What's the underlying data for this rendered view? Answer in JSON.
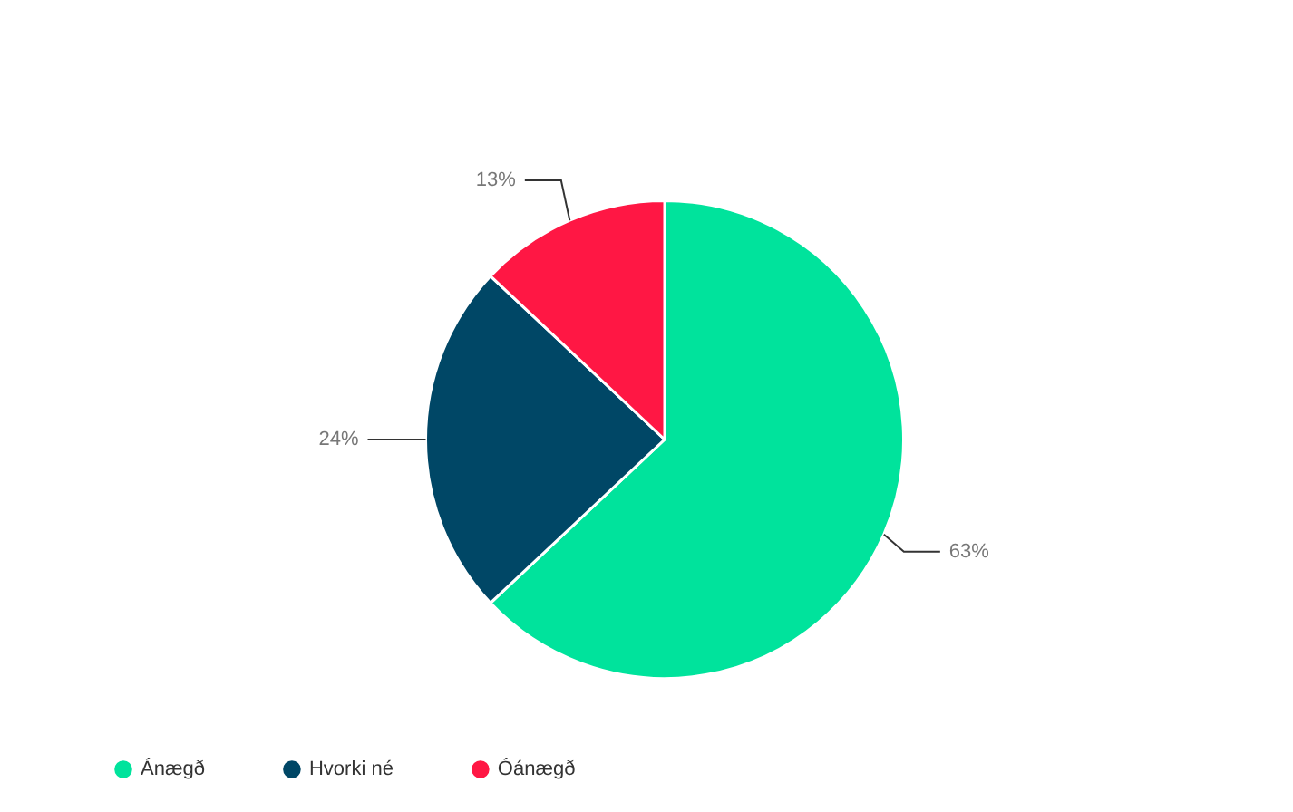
{
  "chart_data": {
    "type": "pie",
    "categories": [
      "Ánægð",
      "Hvorki né",
      "Óánægð"
    ],
    "values": [
      63,
      24,
      13
    ],
    "colors": [
      "#00e39c",
      "#004766",
      "#ff1744"
    ],
    "value_labels": [
      "63%",
      "24%",
      "13%"
    ],
    "legend": "bottom"
  }
}
